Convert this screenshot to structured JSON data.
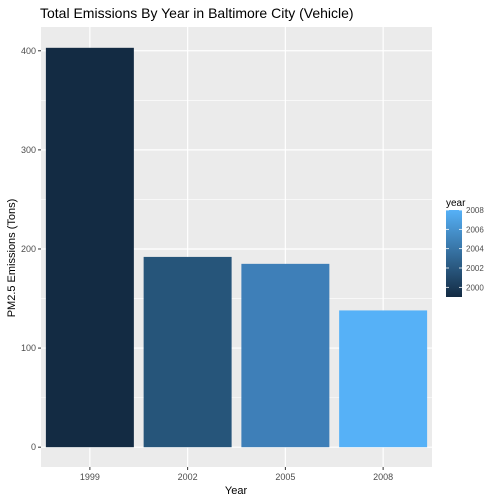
{
  "chart_data": {
    "type": "bar",
    "title": "Total Emissions By Year in Baltimore City (Vehicle)",
    "xlabel": "Year",
    "ylabel": "PM2.5 Emissions (Tons)",
    "categories": [
      "1999",
      "2002",
      "2005",
      "2008"
    ],
    "values": [
      403,
      192,
      185,
      138
    ],
    "ylim": [
      -20,
      424
    ],
    "yticks": [
      0,
      100,
      200,
      300,
      400
    ],
    "grid": true,
    "legend": {
      "title": "year",
      "placement": "right",
      "labels": [
        "2008",
        "2006",
        "2004",
        "2002",
        "2000"
      ],
      "range": [
        1999,
        2008
      ],
      "color_low": "#132B43",
      "color_high": "#56B1F7"
    },
    "bar_colors": [
      "#132B43",
      "#26557A",
      "#3E7FB8",
      "#56B1F7"
    ],
    "panel_background": "#EBEBEB"
  }
}
